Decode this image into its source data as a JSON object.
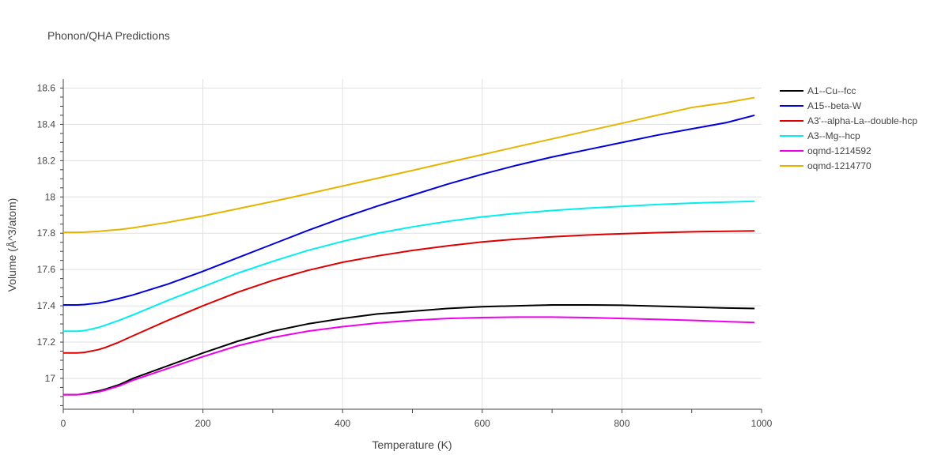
{
  "chart_data": {
    "type": "line",
    "title": "Phonon/QHA Predictions",
    "xlabel": "Temperature (K)",
    "ylabel": "Volume (Å^3/atom)",
    "xlim": [
      0,
      1000
    ],
    "ylim": [
      16.83,
      18.65
    ],
    "x_ticks": [
      0,
      200,
      400,
      600,
      800,
      1000
    ],
    "y_ticks": [
      17,
      17.2,
      17.4,
      17.6,
      17.8,
      18,
      18.2,
      18.4,
      18.6
    ],
    "x_tick_labels": [
      "0",
      "200",
      "400",
      "600",
      "800",
      "1000"
    ],
    "y_tick_labels": [
      "17",
      "17.2",
      "17.4",
      "17.6",
      "17.8",
      "18",
      "18.2",
      "18.4",
      "18.6"
    ],
    "grid": true,
    "legend_position": "right",
    "series": [
      {
        "name": "A1--Cu--fcc",
        "color": "#000000",
        "x": [
          0,
          20,
          30,
          50,
          60,
          80,
          100,
          150,
          200,
          250,
          300,
          350,
          400,
          450,
          500,
          550,
          600,
          650,
          700,
          750,
          800,
          850,
          900,
          950,
          990
        ],
        "y": [
          16.91,
          16.91,
          16.915,
          16.93,
          16.94,
          16.965,
          17.0,
          17.07,
          17.14,
          17.205,
          17.26,
          17.3,
          17.33,
          17.355,
          17.37,
          17.385,
          17.395,
          17.4,
          17.405,
          17.405,
          17.403,
          17.398,
          17.393,
          17.388,
          17.385
        ]
      },
      {
        "name": "A15--beta-W",
        "color": "#0000dd",
        "x": [
          0,
          20,
          30,
          50,
          60,
          80,
          100,
          150,
          200,
          250,
          300,
          350,
          400,
          450,
          500,
          550,
          600,
          650,
          700,
          750,
          800,
          850,
          900,
          950,
          990
        ],
        "y": [
          17.405,
          17.405,
          17.407,
          17.415,
          17.422,
          17.44,
          17.46,
          17.52,
          17.59,
          17.665,
          17.74,
          17.815,
          17.885,
          17.95,
          18.01,
          18.07,
          18.125,
          18.175,
          18.22,
          18.26,
          18.3,
          18.34,
          18.375,
          18.41,
          18.45
        ]
      },
      {
        "name": "A3'--alpha-La--double-hcp",
        "color": "#dd0000",
        "x": [
          0,
          20,
          30,
          50,
          60,
          80,
          100,
          150,
          200,
          250,
          300,
          350,
          400,
          450,
          500,
          550,
          600,
          650,
          700,
          750,
          800,
          850,
          900,
          950,
          990
        ],
        "y": [
          17.14,
          17.14,
          17.143,
          17.158,
          17.17,
          17.2,
          17.235,
          17.32,
          17.4,
          17.475,
          17.54,
          17.595,
          17.64,
          17.675,
          17.705,
          17.73,
          17.752,
          17.768,
          17.78,
          17.79,
          17.797,
          17.803,
          17.808,
          17.811,
          17.813
        ]
      },
      {
        "name": "A3--Mg--hcp",
        "color": "#00eeee",
        "x": [
          0,
          20,
          30,
          50,
          60,
          80,
          100,
          150,
          200,
          250,
          300,
          350,
          400,
          450,
          500,
          550,
          600,
          650,
          700,
          750,
          800,
          850,
          900,
          950,
          990
        ],
        "y": [
          17.26,
          17.26,
          17.263,
          17.28,
          17.293,
          17.32,
          17.35,
          17.43,
          17.505,
          17.58,
          17.645,
          17.705,
          17.755,
          17.8,
          17.835,
          17.865,
          17.89,
          17.91,
          17.925,
          17.938,
          17.948,
          17.958,
          17.966,
          17.972,
          17.976
        ]
      },
      {
        "name": "oqmd-1214592",
        "color": "#ee00ee",
        "x": [
          0,
          20,
          30,
          50,
          60,
          80,
          100,
          150,
          200,
          250,
          300,
          350,
          400,
          450,
          500,
          550,
          600,
          650,
          700,
          750,
          800,
          850,
          900,
          950,
          990
        ],
        "y": [
          16.91,
          16.91,
          16.913,
          16.925,
          16.935,
          16.958,
          16.99,
          17.055,
          17.12,
          17.18,
          17.225,
          17.26,
          17.285,
          17.305,
          17.32,
          17.33,
          17.335,
          17.338,
          17.338,
          17.335,
          17.33,
          17.325,
          17.32,
          17.313,
          17.308
        ]
      },
      {
        "name": "oqmd-1214770",
        "color": "#e6b400",
        "x": [
          0,
          20,
          30,
          50,
          60,
          80,
          100,
          150,
          200,
          250,
          300,
          350,
          400,
          450,
          500,
          550,
          600,
          650,
          700,
          750,
          800,
          850,
          900,
          950,
          990
        ],
        "y": [
          17.805,
          17.805,
          17.806,
          17.81,
          17.814,
          17.82,
          17.83,
          17.86,
          17.895,
          17.935,
          17.975,
          18.017,
          18.06,
          18.103,
          18.146,
          18.19,
          18.233,
          18.277,
          18.32,
          18.363,
          18.406,
          18.45,
          18.493,
          18.52,
          18.548
        ]
      }
    ]
  }
}
